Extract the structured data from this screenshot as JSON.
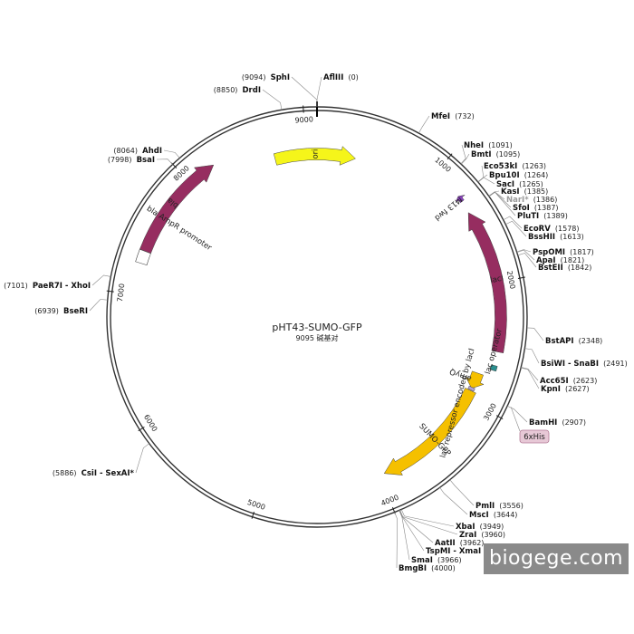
{
  "plasmid": {
    "name": "pHT43-SUMO-GFP",
    "length": 9095,
    "length_text": "9095 碱基对"
  },
  "ticks": [
    {
      "pos": 1000,
      "label": "1000"
    },
    {
      "pos": 2000,
      "label": "2000"
    },
    {
      "pos": 3000,
      "label": "3000"
    },
    {
      "pos": 4000,
      "label": "4000"
    },
    {
      "pos": 5000,
      "label": "5000"
    },
    {
      "pos": 6000,
      "label": "6000"
    },
    {
      "pos": 7000,
      "label": "7000"
    },
    {
      "pos": 8000,
      "label": "8000"
    },
    {
      "pos": 9000,
      "label": "9000"
    }
  ],
  "sites": [
    {
      "name": "AflIII",
      "pos_text": "(0)",
      "pos": 0,
      "side": "right"
    },
    {
      "name": "SphI",
      "pos_text": "(9094)",
      "pos": 9094,
      "side": "left"
    },
    {
      "name": "DrdI",
      "pos_text": "(8850)",
      "pos": 8850,
      "side": "left"
    },
    {
      "name": "MfeI",
      "pos_text": "(732)",
      "pos": 732,
      "side": "right"
    },
    {
      "name": "NheI",
      "pos_text": "(1091)",
      "pos": 1091,
      "side": "right"
    },
    {
      "name": "BmtI",
      "pos_text": "(1095)",
      "pos": 1095,
      "side": "right"
    },
    {
      "name": "Eco53kI",
      "pos_text": "(1263)",
      "pos": 1263,
      "side": "right"
    },
    {
      "name": "Bpu10I",
      "pos_text": "(1264)",
      "pos": 1264,
      "side": "right"
    },
    {
      "name": "SacI",
      "pos_text": "(1265)",
      "pos": 1265,
      "side": "right"
    },
    {
      "name": "KasI",
      "pos_text": "(1385)",
      "pos": 1385,
      "side": "right"
    },
    {
      "name": "NarI*",
      "pos_text": "(1386)",
      "pos": 1386,
      "side": "right",
      "dim": true
    },
    {
      "name": "SfoI",
      "pos_text": "(1387)",
      "pos": 1387,
      "side": "right"
    },
    {
      "name": "PluTI",
      "pos_text": "(1389)",
      "pos": 1389,
      "side": "right"
    },
    {
      "name": "EcoRV",
      "pos_text": "(1578)",
      "pos": 1578,
      "side": "right"
    },
    {
      "name": "BssHII",
      "pos_text": "(1613)",
      "pos": 1613,
      "side": "right"
    },
    {
      "name": "PspOMI",
      "pos_text": "(1817)",
      "pos": 1817,
      "side": "right"
    },
    {
      "name": "ApaI",
      "pos_text": "(1821)",
      "pos": 1821,
      "side": "right"
    },
    {
      "name": "BstEII",
      "pos_text": "(1842)",
      "pos": 1842,
      "side": "right"
    },
    {
      "name": "BstAPI",
      "pos_text": "(2348)",
      "pos": 2348,
      "side": "right"
    },
    {
      "name": "BsiWI - SnaBI",
      "pos_text": "(2491)",
      "pos": 2491,
      "side": "right"
    },
    {
      "name": "Acc65I",
      "pos_text": "(2623)",
      "pos": 2623,
      "side": "right"
    },
    {
      "name": "KpnI",
      "pos_text": "(2627)",
      "pos": 2627,
      "side": "right"
    },
    {
      "name": "BamHI",
      "pos_text": "(2907)",
      "pos": 2907,
      "side": "right"
    },
    {
      "name": "PmlI",
      "pos_text": "(3556)",
      "pos": 3556,
      "side": "right"
    },
    {
      "name": "MscI",
      "pos_text": "(3644)",
      "pos": 3644,
      "side": "right"
    },
    {
      "name": "XbaI",
      "pos_text": "(3949)",
      "pos": 3949,
      "side": "right"
    },
    {
      "name": "ZraI",
      "pos_text": "(3960)",
      "pos": 3960,
      "side": "right"
    },
    {
      "name": "AatII",
      "pos_text": "(3962)",
      "pos": 3962,
      "side": "right"
    },
    {
      "name": "TspMI - XmaI",
      "pos_text": "(3964)",
      "pos": 3964,
      "side": "right"
    },
    {
      "name": "SmaI",
      "pos_text": "(3966)",
      "pos": 3966,
      "side": "right"
    },
    {
      "name": "BmgBI",
      "pos_text": "(4000)",
      "pos": 4000,
      "side": "right"
    },
    {
      "name": "CsiI - SexAI*",
      "pos_text": "(5886)",
      "pos": 5886,
      "side": "left"
    },
    {
      "name": "BseRI",
      "pos_text": "(6939)",
      "pos": 6939,
      "side": "left"
    },
    {
      "name": "PaeR7I - XhoI",
      "pos_text": "(7101)",
      "pos": 7101,
      "side": "left"
    },
    {
      "name": "BsaI",
      "pos_text": "(7998)",
      "pos": 7998,
      "side": "left"
    },
    {
      "name": "AhdI",
      "pos_text": "(8064)",
      "pos": 8064,
      "side": "left"
    }
  ],
  "features": [
    {
      "name": "ori",
      "start": 8720,
      "end": 9440,
      "color": "#f5f51a",
      "radius": 180,
      "direction": "cw"
    },
    {
      "name": "lacI",
      "start": 1400,
      "end": 2550,
      "color": "#962d60",
      "radius": 203,
      "direction": "ccw"
    },
    {
      "name": "bla",
      "start": 7350,
      "end": 8230,
      "color": "#962d60",
      "radius": 203,
      "direction": "cw"
    },
    {
      "name": "SUMO-GFP",
      "start": 2920,
      "end": 3960,
      "color": "#f5c000",
      "radius": 188,
      "direction": "cw"
    },
    {
      "name": "amyQ",
      "start": 2760,
      "end": 2900,
      "color": "#f5c000",
      "radius": 188,
      "direction": "cw"
    },
    {
      "name": "M13 fwd",
      "start": 1250,
      "end": 1300,
      "color": "#8a3fbf",
      "radius": 205,
      "direction": "ccw"
    },
    {
      "name": "6xHis",
      "start": 2890,
      "end": 2915,
      "color": "#b2a1d6",
      "radius": 188,
      "direction": "none"
    },
    {
      "name": "lac operator",
      "start": 2660,
      "end": 2700,
      "color": "#2a8f8f",
      "radius": 203,
      "direction": "none"
    }
  ],
  "promoters": [
    {
      "name": "bla AmpR promoter",
      "start": 7250,
      "end": 7350
    }
  ],
  "inner_labels": [
    {
      "text": "lac repressor encoded by lacI",
      "pos": 3150
    },
    {
      "text": "lac operator",
      "pos": 2600
    }
  ],
  "colors": {
    "backbone": "#333333",
    "site_line": "#888888",
    "his_badge_bg": "#e7c8d6",
    "his_badge_border": "#b27a95"
  },
  "watermark": {
    "text": "biogege.com"
  }
}
